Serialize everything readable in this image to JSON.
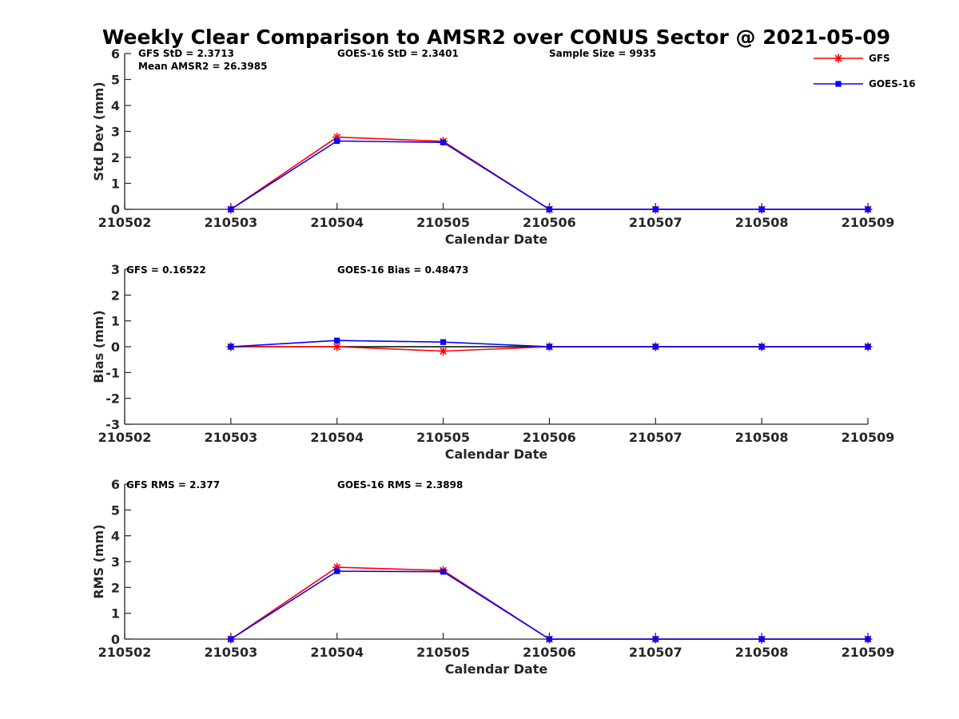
{
  "title": "Weekly Clear Comparison to AMSR2 over CONUS Sector @ 2021-05-09",
  "legend": {
    "placement": "top-right",
    "items": [
      {
        "name": "GFS",
        "color": "#ff0000",
        "marker": "asterisk"
      },
      {
        "name": "GOES-16",
        "color": "#0000ff",
        "marker": "square"
      }
    ]
  },
  "chart_data": [
    {
      "type": "line",
      "xlabel": "Calendar Date",
      "ylabel": "Std Dev (mm)",
      "categories": [
        "210502",
        "210503",
        "210504",
        "210505",
        "210506",
        "210507",
        "210508",
        "210509"
      ],
      "ylim": [
        0,
        6
      ],
      "yticks": [
        "0",
        "1",
        "2",
        "3",
        "4",
        "5",
        "6"
      ],
      "annotations": [
        "GFS StD = 2.3713",
        "Mean AMSR2 = 26.3985",
        "GOES-16 StD = 2.3401",
        "Sample Size = 9935"
      ],
      "series": [
        {
          "name": "GFS",
          "color": "#ff0000",
          "values": [
            null,
            0,
            2.78,
            2.62,
            0,
            0,
            0,
            0
          ]
        },
        {
          "name": "GOES-16",
          "color": "#0000ff",
          "values": [
            null,
            0,
            2.63,
            2.58,
            0,
            0,
            0,
            0
          ]
        }
      ],
      "reference_line": null,
      "grid": false
    },
    {
      "type": "line",
      "xlabel": "Calendar Date",
      "ylabel": "Bias (mm)",
      "categories": [
        "210502",
        "210503",
        "210504",
        "210505",
        "210506",
        "210507",
        "210508",
        "210509"
      ],
      "ylim": [
        -3,
        3
      ],
      "yticks": [
        "-3",
        "-2",
        "-1",
        "0",
        "1",
        "2",
        "3"
      ],
      "annotations": [
        "GFS = 0.16522",
        "GOES-16 Bias  = 0.48473"
      ],
      "series": [
        {
          "name": "GFS",
          "color": "#ff0000",
          "values": [
            null,
            0,
            0,
            -0.17,
            0,
            0,
            0,
            0
          ]
        },
        {
          "name": "GOES-16",
          "color": "#0000ff",
          "values": [
            null,
            0,
            0.24,
            0.18,
            0,
            0,
            0,
            0
          ]
        }
      ],
      "reference_line": 0,
      "grid": false
    },
    {
      "type": "line",
      "xlabel": "Calendar Date",
      "ylabel": "RMS (mm)",
      "categories": [
        "210502",
        "210503",
        "210504",
        "210505",
        "210506",
        "210507",
        "210508",
        "210509"
      ],
      "ylim": [
        0,
        6
      ],
      "yticks": [
        "0",
        "1",
        "2",
        "3",
        "4",
        "5",
        "6"
      ],
      "annotations": [
        "GFS RMS = 2.377",
        "GOES-16 RMS = 2.3898"
      ],
      "series": [
        {
          "name": "GFS",
          "color": "#ff0000",
          "values": [
            null,
            0,
            2.78,
            2.66,
            0,
            0,
            0,
            0
          ]
        },
        {
          "name": "GOES-16",
          "color": "#0000ff",
          "values": [
            null,
            0,
            2.63,
            2.61,
            0,
            0,
            0,
            0
          ]
        }
      ],
      "reference_line": null,
      "grid": false
    }
  ]
}
